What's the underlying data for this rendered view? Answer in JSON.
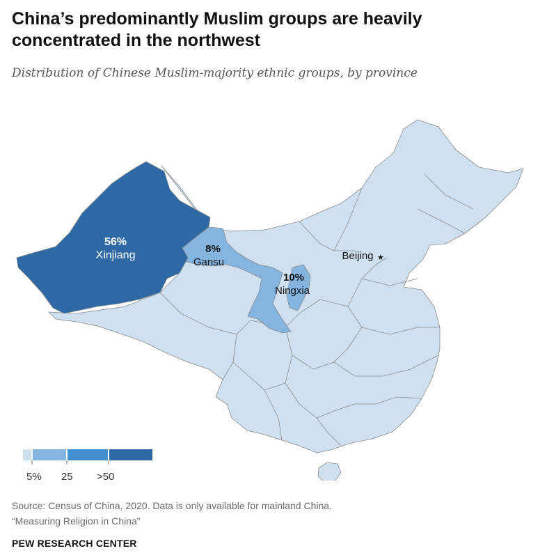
{
  "title": "China’s predominantly Muslim groups are heavily concentrated in the northwest",
  "subtitle": "Distribution of Chinese Muslim-majority ethnic groups, by province",
  "colors": {
    "bin_0": "#cfe0f1",
    "bin_1": "#84b5e0",
    "bin_2": "#4390cc",
    "bin_3": "#2e69a6",
    "border": "#8a8a8a"
  },
  "regions": [
    {
      "name": "Xinjiang",
      "value": "56%",
      "share": 56
    },
    {
      "name": "Gansu",
      "value": "8%",
      "share": 8
    },
    {
      "name": "Ningxia",
      "value": "10%",
      "share": 10
    }
  ],
  "capital": {
    "name": "Beijing",
    "marker": "star-icon"
  },
  "legend": {
    "ticks": [
      "5%",
      "25",
      ">50"
    ]
  },
  "source": {
    "line1": "Source: Census of China, 2020. Data is only available for mainland China.",
    "line2": "“Measuring Religion in China”"
  },
  "brand": "PEW RESEARCH CENTER"
}
